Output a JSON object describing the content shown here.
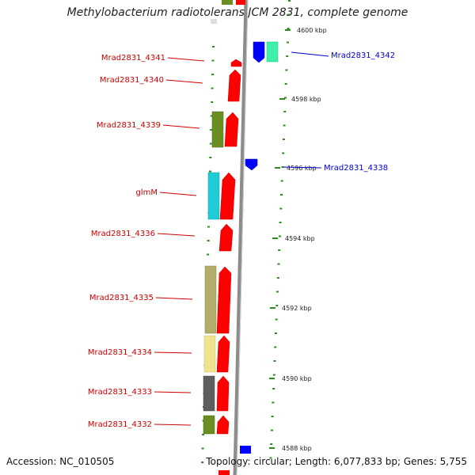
{
  "title": "Methylobacterium radiotolerans JCM 2831, complete genome",
  "accession": "Accession: NC_010505",
  "topology": "Topology: circular; Length: 6,077,833 bp; Genes: 5,755",
  "colors": {
    "backbone": "#8c8c8c",
    "forward_strand": "#ff0000",
    "reverse_strand": "#0000ff",
    "label_forward": "#cc0000",
    "label_reverse": "#0000cc",
    "tick_mark": "#2e8b22"
  },
  "scale_ticks": [
    "4600 kbp",
    "4598 kbp",
    "4596 kbp",
    "4594 kbp",
    "4592 kbp",
    "4590 kbp",
    "4588 kbp"
  ],
  "genes_left": [
    {
      "label": "Mrad2831_4341"
    },
    {
      "label": "Mrad2831_4340"
    },
    {
      "label": "Mrad2831_4339"
    },
    {
      "label": "glmM"
    },
    {
      "label": "Mrad2831_4336"
    },
    {
      "label": "Mrad2831_4335"
    },
    {
      "label": "Mrad2831_4334"
    },
    {
      "label": "Mrad2831_4333"
    },
    {
      "label": "Mrad2831_4332"
    }
  ],
  "genes_right": [
    {
      "label": "Mrad2831_4342"
    },
    {
      "label": "Mrad2831_4338"
    }
  ]
}
